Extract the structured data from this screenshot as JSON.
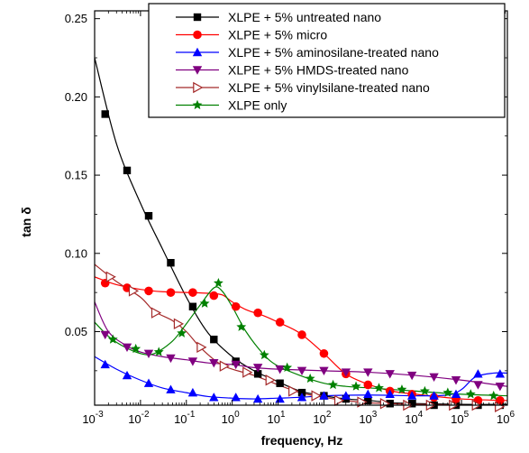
{
  "chart_data": {
    "type": "line",
    "xlabel": "frequency, Hz",
    "ylabel": "tan δ",
    "x_scale": "log",
    "xlim": [
      0.001,
      1000000
    ],
    "ylim": [
      0.003,
      0.255
    ],
    "x_ticks": [
      {
        "value": 0.001,
        "base": "10",
        "exp": "-3"
      },
      {
        "value": 0.01,
        "base": "10",
        "exp": "-2"
      },
      {
        "value": 0.1,
        "base": "10",
        "exp": "-1"
      },
      {
        "value": 1,
        "base": "10",
        "exp": "0"
      },
      {
        "value": 10,
        "base": "10",
        "exp": "1"
      },
      {
        "value": 100,
        "base": "10",
        "exp": "2"
      },
      {
        "value": 1000,
        "base": "10",
        "exp": "3"
      },
      {
        "value": 10000,
        "base": "10",
        "exp": "4"
      },
      {
        "value": 100000,
        "base": "10",
        "exp": "5"
      },
      {
        "value": 1000000,
        "base": "10",
        "exp": "6"
      }
    ],
    "y_ticks": [
      {
        "value": 0.05,
        "label": "0.05"
      },
      {
        "value": 0.1,
        "label": "0.10"
      },
      {
        "value": 0.15,
        "label": "0.15"
      },
      {
        "value": 0.2,
        "label": "0.20"
      },
      {
        "value": 0.25,
        "label": "0.25"
      }
    ],
    "legend_position": "top-right",
    "grid": false,
    "series": [
      {
        "name": "XLPE + 5% untreated nano",
        "color": "#000000",
        "marker": "square",
        "points": [
          [
            0.0017,
            0.189
          ],
          [
            0.0051,
            0.153
          ],
          [
            0.0151,
            0.124
          ],
          [
            0.0457,
            0.094
          ],
          [
            0.138,
            0.066
          ],
          [
            0.398,
            0.045
          ],
          [
            1.2,
            0.031
          ],
          [
            3.63,
            0.023
          ],
          [
            11.0,
            0.017
          ],
          [
            33.1,
            0.011
          ],
          [
            100,
            0.009
          ],
          [
            302,
            0.007
          ],
          [
            912,
            0.006
          ],
          [
            2754,
            0.004
          ],
          [
            8318,
            0.004
          ],
          [
            25119,
            0.003
          ],
          [
            75858,
            0.003
          ],
          [
            229087,
            0.003
          ],
          [
            691831,
            0.003
          ]
        ],
        "curve": [
          [
            0.001,
            0.225
          ],
          [
            0.003,
            0.17
          ],
          [
            0.01,
            0.132
          ],
          [
            0.03,
            0.103
          ],
          [
            0.1,
            0.072
          ],
          [
            0.3,
            0.049
          ],
          [
            1,
            0.034
          ],
          [
            3,
            0.025
          ],
          [
            10,
            0.018
          ],
          [
            30,
            0.012
          ],
          [
            100,
            0.009
          ],
          [
            300,
            0.007
          ],
          [
            1000,
            0.006
          ],
          [
            3000,
            0.0045
          ],
          [
            10000,
            0.004
          ],
          [
            100000,
            0.0035
          ],
          [
            1000000,
            0.0035
          ]
        ]
      },
      {
        "name": "XLPE + 5% micro",
        "color": "#ff0000",
        "marker": "circle",
        "points": [
          [
            0.0017,
            0.081
          ],
          [
            0.0051,
            0.078
          ],
          [
            0.0151,
            0.076
          ],
          [
            0.0457,
            0.075
          ],
          [
            0.138,
            0.075
          ],
          [
            0.398,
            0.073
          ],
          [
            1.2,
            0.066
          ],
          [
            3.63,
            0.062
          ],
          [
            11.0,
            0.056
          ],
          [
            33.1,
            0.048
          ],
          [
            100,
            0.036
          ],
          [
            302,
            0.023
          ],
          [
            912,
            0.016
          ],
          [
            2754,
            0.012
          ],
          [
            8318,
            0.01
          ],
          [
            25119,
            0.008
          ],
          [
            75858,
            0.007
          ],
          [
            229087,
            0.006
          ],
          [
            691831,
            0.006
          ]
        ],
        "curve": [
          [
            0.001,
            0.085
          ],
          [
            0.003,
            0.08
          ],
          [
            0.01,
            0.077
          ],
          [
            0.03,
            0.0755
          ],
          [
            0.1,
            0.075
          ],
          [
            0.3,
            0.0745
          ],
          [
            0.6,
            0.0735
          ],
          [
            1,
            0.069
          ],
          [
            2,
            0.064
          ],
          [
            5,
            0.06
          ],
          [
            10,
            0.056
          ],
          [
            30,
            0.049
          ],
          [
            100,
            0.036
          ],
          [
            300,
            0.023
          ],
          [
            1000,
            0.016
          ],
          [
            3000,
            0.012
          ],
          [
            10000,
            0.01
          ],
          [
            100000,
            0.007
          ],
          [
            1000000,
            0.006
          ]
        ]
      },
      {
        "name": "XLPE + 5% aminosilane-treated nano",
        "color": "#0000ff",
        "marker": "triangle-up",
        "points": [
          [
            0.0017,
            0.029
          ],
          [
            0.0051,
            0.022
          ],
          [
            0.0151,
            0.017
          ],
          [
            0.0457,
            0.013
          ],
          [
            0.138,
            0.011
          ],
          [
            0.398,
            0.008
          ],
          [
            1.2,
            0.008
          ],
          [
            3.63,
            0.007
          ],
          [
            11.0,
            0.007
          ],
          [
            33.1,
            0.008
          ],
          [
            100,
            0.009
          ],
          [
            302,
            0.009
          ],
          [
            912,
            0.01
          ],
          [
            2754,
            0.01
          ],
          [
            8318,
            0.009
          ],
          [
            25119,
            0.009
          ],
          [
            75858,
            0.01
          ],
          [
            229087,
            0.023
          ],
          [
            691831,
            0.023
          ]
        ],
        "curve": [
          [
            0.001,
            0.034
          ],
          [
            0.003,
            0.026
          ],
          [
            0.01,
            0.019
          ],
          [
            0.03,
            0.014
          ],
          [
            0.1,
            0.011
          ],
          [
            0.3,
            0.0085
          ],
          [
            1,
            0.0075
          ],
          [
            3,
            0.007
          ],
          [
            10,
            0.0075
          ],
          [
            30,
            0.008
          ],
          [
            100,
            0.009
          ],
          [
            1000,
            0.0095
          ],
          [
            10000,
            0.009
          ],
          [
            50000,
            0.0095
          ],
          [
            100000,
            0.013
          ],
          [
            200000,
            0.021
          ],
          [
            500000,
            0.0235
          ],
          [
            1000000,
            0.0235
          ]
        ]
      },
      {
        "name": "XLPE + 5% HMDS-treated nano",
        "color": "#800080",
        "marker": "triangle-down",
        "points": [
          [
            0.0017,
            0.048
          ],
          [
            0.0051,
            0.04
          ],
          [
            0.0151,
            0.036
          ],
          [
            0.0457,
            0.033
          ],
          [
            0.138,
            0.031
          ],
          [
            0.398,
            0.03
          ],
          [
            1.2,
            0.029
          ],
          [
            3.63,
            0.027
          ],
          [
            11.0,
            0.026
          ],
          [
            33.1,
            0.025
          ],
          [
            100,
            0.025
          ],
          [
            302,
            0.024
          ],
          [
            912,
            0.024
          ],
          [
            2754,
            0.023
          ],
          [
            8318,
            0.022
          ],
          [
            25119,
            0.021
          ],
          [
            75858,
            0.019
          ],
          [
            229087,
            0.016
          ],
          [
            691831,
            0.015
          ]
        ],
        "curve": [
          [
            0.001,
            0.069
          ],
          [
            0.002,
            0.05
          ],
          [
            0.005,
            0.041
          ],
          [
            0.01,
            0.037
          ],
          [
            0.03,
            0.034
          ],
          [
            0.1,
            0.032
          ],
          [
            0.3,
            0.03
          ],
          [
            1,
            0.029
          ],
          [
            3,
            0.027
          ],
          [
            10,
            0.026
          ],
          [
            100,
            0.025
          ],
          [
            1000,
            0.024
          ],
          [
            10000,
            0.022
          ],
          [
            100000,
            0.019
          ],
          [
            1000000,
            0.015
          ]
        ]
      },
      {
        "name": "XLPE + 5% vinylsilane-treated nano",
        "color": "#a52a2a",
        "marker": "triangle-right-open",
        "points": [
          [
            0.0022,
            0.085
          ],
          [
            0.0069,
            0.076
          ],
          [
            0.0214,
            0.062
          ],
          [
            0.0661,
            0.055
          ],
          [
            0.209,
            0.04
          ],
          [
            0.661,
            0.028
          ],
          [
            2.09,
            0.024
          ],
          [
            6.61,
            0.019
          ],
          [
            20.9,
            0.012
          ],
          [
            66.1,
            0.009
          ],
          [
            209,
            0.006
          ],
          [
            661,
            0.005
          ],
          [
            2089,
            0.004
          ],
          [
            6607,
            0.003
          ],
          [
            20893,
            0.003
          ],
          [
            66069,
            0.003
          ],
          [
            208930,
            0.003
          ],
          [
            660693,
            0.002
          ]
        ],
        "curve": [
          [
            0.001,
            0.093
          ],
          [
            0.003,
            0.082
          ],
          [
            0.01,
            0.072
          ],
          [
            0.02,
            0.063
          ],
          [
            0.05,
            0.057
          ],
          [
            0.1,
            0.05
          ],
          [
            0.2,
            0.04
          ],
          [
            0.5,
            0.03
          ],
          [
            1,
            0.026
          ],
          [
            3,
            0.022
          ],
          [
            10,
            0.016
          ],
          [
            30,
            0.011
          ],
          [
            100,
            0.008
          ],
          [
            300,
            0.006
          ],
          [
            1000,
            0.0045
          ],
          [
            10000,
            0.0035
          ],
          [
            100000,
            0.003
          ],
          [
            1000000,
            0.0025
          ]
        ]
      },
      {
        "name": "XLPE only",
        "color": "#008000",
        "marker": "star",
        "points": [
          [
            0.0025,
            0.045
          ],
          [
            0.0079,
            0.039
          ],
          [
            0.0251,
            0.037
          ],
          [
            0.0794,
            0.049
          ],
          [
            0.251,
            0.068
          ],
          [
            0.501,
            0.081
          ],
          [
            1.58,
            0.053
          ],
          [
            5.01,
            0.035
          ],
          [
            15.8,
            0.027
          ],
          [
            50.1,
            0.02
          ],
          [
            158,
            0.016
          ],
          [
            501,
            0.015
          ],
          [
            1585,
            0.014
          ],
          [
            5012,
            0.013
          ],
          [
            15849,
            0.012
          ],
          [
            50119,
            0.011
          ],
          [
            158489,
            0.01
          ],
          [
            501187,
            0.009
          ]
        ],
        "curve": [
          [
            0.001,
            0.056
          ],
          [
            0.002,
            0.047
          ],
          [
            0.004,
            0.041
          ],
          [
            0.01,
            0.036
          ],
          [
            0.02,
            0.036
          ],
          [
            0.05,
            0.044
          ],
          [
            0.1,
            0.055
          ],
          [
            0.2,
            0.067
          ],
          [
            0.4,
            0.078
          ],
          [
            0.6,
            0.076
          ],
          [
            1,
            0.066
          ],
          [
            2,
            0.05
          ],
          [
            5,
            0.035
          ],
          [
            10,
            0.028
          ],
          [
            30,
            0.022
          ],
          [
            100,
            0.017
          ],
          [
            300,
            0.015
          ],
          [
            1000,
            0.014
          ],
          [
            10000,
            0.012
          ],
          [
            100000,
            0.01
          ],
          [
            1000000,
            0.009
          ]
        ]
      }
    ]
  }
}
